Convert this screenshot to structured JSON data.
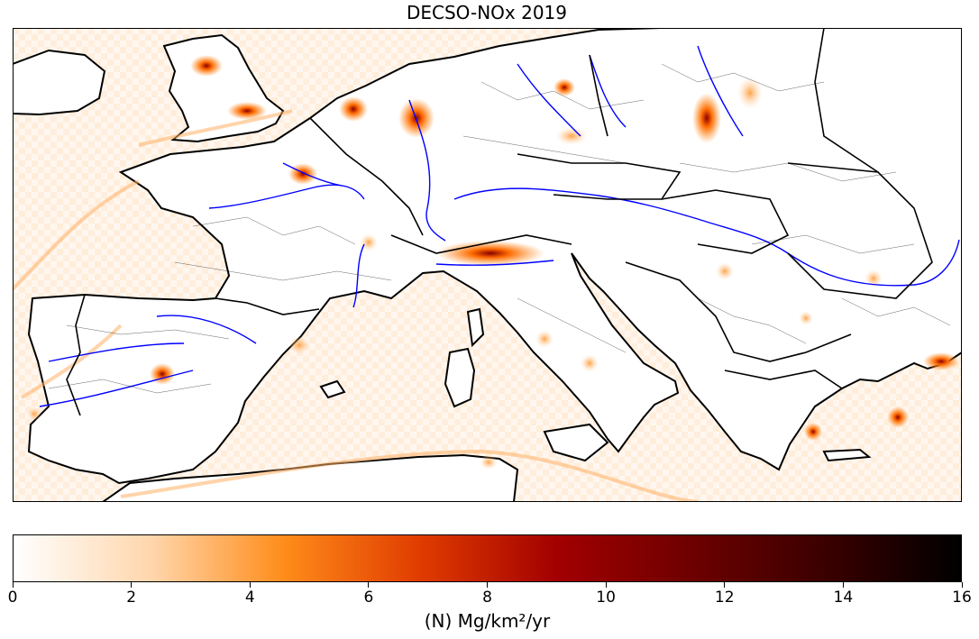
{
  "title": "DECSO-NOx 2019",
  "colorbar": {
    "label": "(N) Mg/km²/yr",
    "min": 0,
    "max": 16,
    "ticks": [
      "0",
      "2",
      "4",
      "6",
      "8",
      "10",
      "12",
      "14",
      "16"
    ],
    "colormap": "gist_heat_r",
    "stops": [
      "#ffffff",
      "#ffd7ae",
      "#ff8c1a",
      "#e03c00",
      "#a30000",
      "#6e0000",
      "#3a0000",
      "#000000"
    ]
  },
  "map": {
    "region": "Western, Central and Southern Europe",
    "border_color": "#000000",
    "river_color": "#0000ff",
    "grid": "off"
  }
}
